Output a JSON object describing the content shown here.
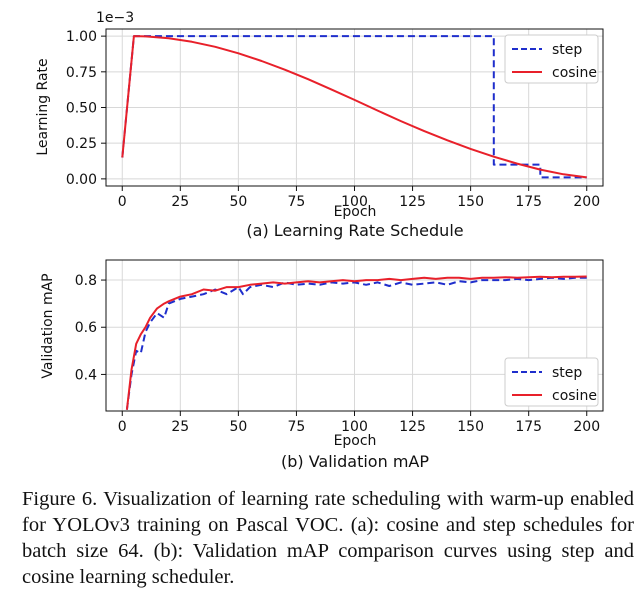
{
  "chart_data": [
    {
      "type": "line",
      "title": "(a) Learning Rate Schedule",
      "xlabel": "Epoch",
      "ylabel": "Learning Rate",
      "axis_multiplier": "1e−3",
      "xlim": [
        -7,
        207
      ],
      "ylim": [
        -0.05,
        1.05
      ],
      "xticks": [
        0,
        25,
        50,
        75,
        100,
        125,
        150,
        175,
        200
      ],
      "yticks": [
        0.0,
        0.25,
        0.5,
        0.75,
        1.0
      ],
      "ytick_labels": [
        "0.00",
        "0.25",
        "0.50",
        "0.75",
        "1.00"
      ],
      "grid": true,
      "legend_position": "top-right",
      "series": [
        {
          "name": "step",
          "style": "dashed",
          "color": "#1f2ecc",
          "x": [
            0,
            5,
            160,
            160,
            180,
            180,
            200
          ],
          "y": [
            0.15,
            1.0,
            1.0,
            0.1,
            0.1,
            0.01,
            0.01
          ]
        },
        {
          "name": "cosine",
          "style": "solid",
          "color": "#e8202a",
          "x": [
            0,
            5,
            10,
            20,
            30,
            40,
            50,
            60,
            70,
            80,
            90,
            100,
            110,
            120,
            130,
            140,
            150,
            160,
            170,
            180,
            190,
            200
          ],
          "y": [
            0.15,
            1.0,
            0.998,
            0.985,
            0.96,
            0.925,
            0.88,
            0.826,
            0.765,
            0.698,
            0.627,
            0.553,
            0.478,
            0.405,
            0.335,
            0.27,
            0.21,
            0.155,
            0.107,
            0.065,
            0.032,
            0.01
          ]
        }
      ]
    },
    {
      "type": "line",
      "title": "(b) Validation mAP",
      "xlabel": "Epoch",
      "ylabel": "Validation mAP",
      "xlim": [
        -7,
        207
      ],
      "ylim": [
        0.245,
        0.885
      ],
      "xticks": [
        0,
        25,
        50,
        75,
        100,
        125,
        150,
        175,
        200
      ],
      "yticks": [
        0.4,
        0.6,
        0.8
      ],
      "ytick_labels": [
        "0.4",
        "0.6",
        "0.8"
      ],
      "grid": true,
      "legend_position": "bottom-right",
      "series": [
        {
          "name": "step",
          "style": "dashed",
          "color": "#1f2ecc",
          "x": [
            2,
            4,
            6,
            8,
            10,
            12,
            15,
            18,
            20,
            25,
            30,
            35,
            40,
            45,
            50,
            52,
            55,
            60,
            65,
            70,
            75,
            80,
            85,
            90,
            95,
            100,
            105,
            110,
            115,
            120,
            125,
            130,
            135,
            140,
            145,
            150,
            155,
            160,
            165,
            170,
            175,
            180,
            185,
            190,
            195,
            200
          ],
          "y": [
            0.25,
            0.4,
            0.5,
            0.49,
            0.58,
            0.62,
            0.66,
            0.64,
            0.7,
            0.72,
            0.73,
            0.74,
            0.76,
            0.74,
            0.77,
            0.74,
            0.77,
            0.78,
            0.77,
            0.79,
            0.78,
            0.785,
            0.78,
            0.79,
            0.785,
            0.79,
            0.78,
            0.79,
            0.775,
            0.79,
            0.78,
            0.785,
            0.79,
            0.78,
            0.795,
            0.79,
            0.8,
            0.8,
            0.8,
            0.805,
            0.8,
            0.805,
            0.81,
            0.805,
            0.81,
            0.81
          ]
        },
        {
          "name": "cosine",
          "style": "solid",
          "color": "#e8202a",
          "x": [
            2,
            4,
            6,
            8,
            10,
            12,
            15,
            18,
            20,
            25,
            30,
            35,
            40,
            45,
            50,
            55,
            60,
            65,
            70,
            75,
            80,
            85,
            90,
            95,
            100,
            105,
            110,
            115,
            120,
            125,
            130,
            135,
            140,
            145,
            150,
            155,
            160,
            165,
            170,
            175,
            180,
            185,
            190,
            195,
            200
          ],
          "y": [
            0.25,
            0.42,
            0.53,
            0.57,
            0.6,
            0.64,
            0.68,
            0.7,
            0.71,
            0.73,
            0.74,
            0.76,
            0.755,
            0.77,
            0.77,
            0.78,
            0.785,
            0.79,
            0.785,
            0.79,
            0.795,
            0.79,
            0.795,
            0.8,
            0.795,
            0.8,
            0.8,
            0.805,
            0.8,
            0.805,
            0.81,
            0.805,
            0.81,
            0.81,
            0.805,
            0.81,
            0.81,
            0.812,
            0.81,
            0.812,
            0.814,
            0.812,
            0.814,
            0.814,
            0.815
          ]
        }
      ]
    }
  ],
  "caption": "Figure 6. Visualization of learning rate scheduling with warm-up enabled for YOLOv3 training on Pascal VOC. (a): cosine and step schedules for batch size 64. (b): Validation mAP comparison curves using step and cosine learning scheduler."
}
